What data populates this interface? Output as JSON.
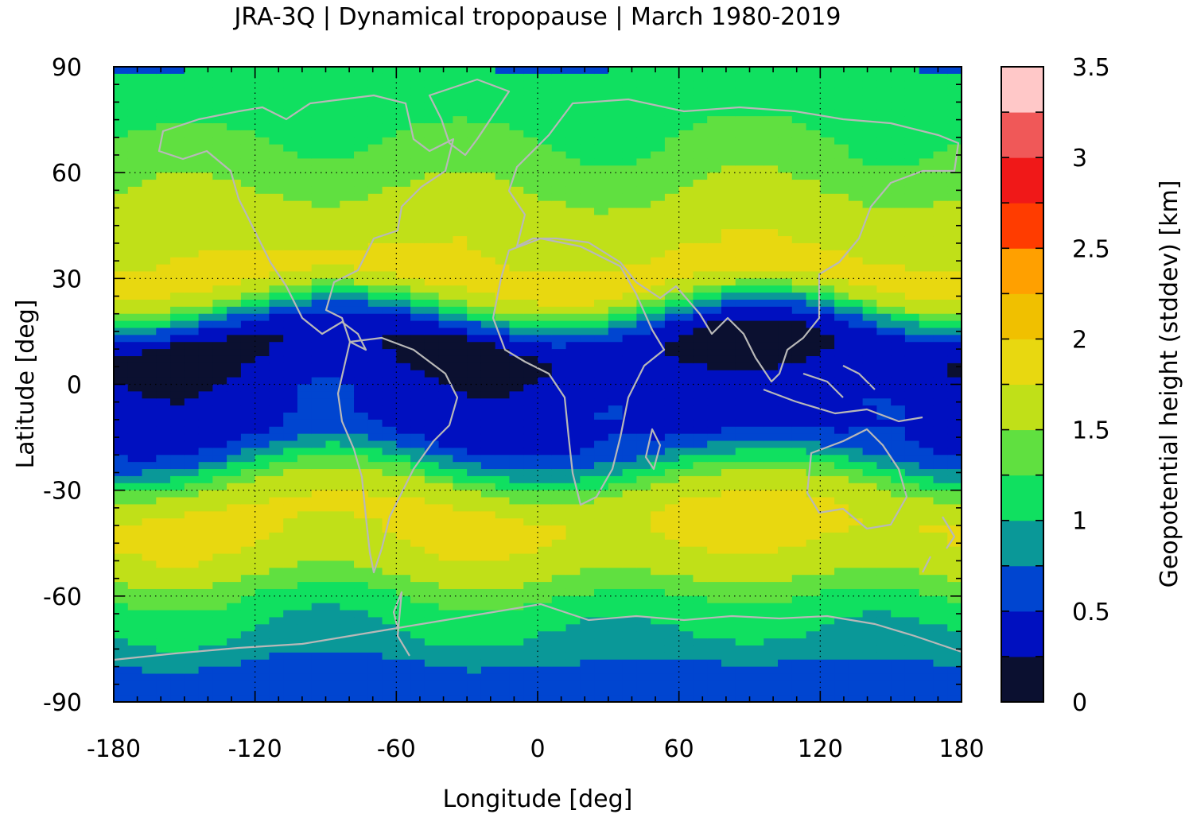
{
  "title": "JRA-3Q | Dynamical tropopause | March 1980-2019",
  "chart_data": {
    "type": "heatmap",
    "title": "JRA-3Q | Dynamical tropopause | March 1980-2019",
    "xlabel": "Longitude [deg]",
    "ylabel": "Latitude [deg]",
    "xlim": [
      -180,
      180
    ],
    "ylim": [
      -90,
      90
    ],
    "x_ticks": [
      "-180",
      "-120",
      "-60",
      "0",
      "60",
      "120",
      "180"
    ],
    "y_ticks": [
      "-90",
      "-60",
      "-30",
      "0",
      "30",
      "60",
      "90"
    ],
    "x_tick_values": [
      -180,
      -120,
      -60,
      0,
      60,
      120,
      180
    ],
    "y_tick_values": [
      -90,
      -60,
      -30,
      0,
      30,
      60,
      90
    ],
    "grid": true,
    "coastlines": true,
    "colorbar": {
      "label": "Geopotential height (stddev) [km]",
      "range": [
        0,
        3.5
      ],
      "tick_labels": [
        "0",
        "0.5",
        "1",
        "1.5",
        "2",
        "2.5",
        "3",
        "3.5"
      ],
      "tick_values": [
        0,
        0.5,
        1,
        1.5,
        2,
        2.5,
        3,
        3.5
      ],
      "step": 0.25,
      "colors": [
        "#0b1030",
        "#0010c0",
        "#0045d0",
        "#0a9898",
        "#10e060",
        "#60e040",
        "#c0e018",
        "#e8d810",
        "#f0c000",
        "#ffa000",
        "#ff3c00",
        "#f01818",
        "#f05858",
        "#ffc8c8"
      ]
    },
    "zonal_profile": {
      "lat": [
        90,
        80,
        70,
        60,
        50,
        40,
        30,
        25,
        20,
        15,
        10,
        5,
        0,
        -5,
        -10,
        -15,
        -20,
        -25,
        -30,
        -35,
        -40,
        -45,
        -50,
        -55,
        -60,
        -65,
        -70,
        -75,
        -80,
        -85,
        -90
      ],
      "value": [
        1.05,
        1.1,
        1.25,
        1.4,
        1.6,
        1.7,
        1.85,
        1.6,
        0.9,
        0.35,
        0.2,
        0.25,
        0.35,
        0.4,
        0.4,
        0.45,
        0.75,
        1.2,
        1.6,
        1.75,
        1.8,
        1.75,
        1.65,
        1.5,
        1.25,
        1.1,
        1.0,
        0.9,
        0.7,
        0.65,
        0.6
      ]
    }
  }
}
